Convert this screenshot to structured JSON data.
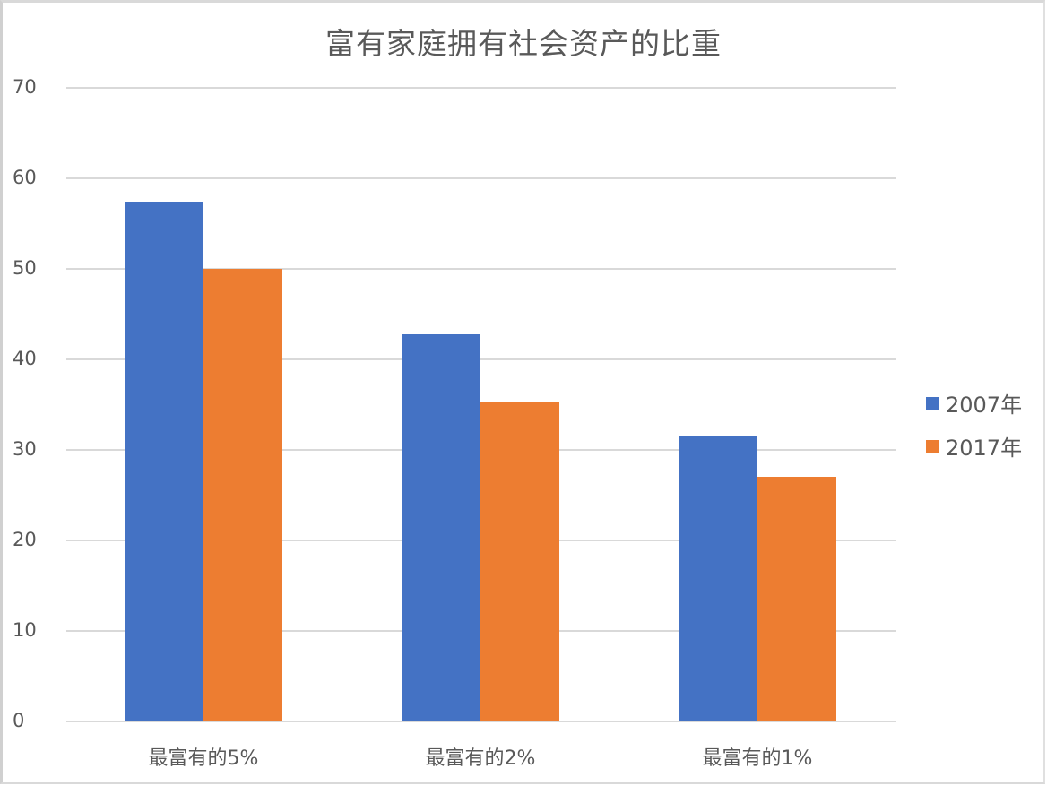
{
  "chart_data": {
    "type": "bar",
    "title": "富有家庭拥有社会资产的比重",
    "xlabel": "",
    "ylabel": "",
    "categories": [
      "最富有的5%",
      "最富有的2%",
      "最富有的1%"
    ],
    "series": [
      {
        "name": "2007年",
        "color": "#4472c4",
        "values": [
          57.4,
          42.8,
          31.5
        ]
      },
      {
        "name": "2017年",
        "color": "#ed7d31",
        "values": [
          50.0,
          35.2,
          27.0
        ]
      }
    ],
    "ylim": [
      0,
      70
    ],
    "yticks": [
      "0",
      "10",
      "20",
      "30",
      "40",
      "50",
      "60",
      "70"
    ],
    "grid": true,
    "legend_position": "right"
  }
}
